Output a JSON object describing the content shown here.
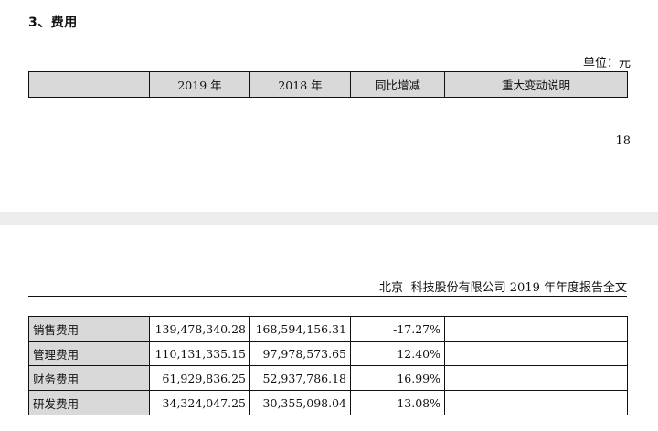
{
  "section": {
    "title": "3、费用"
  },
  "unit": {
    "label": "单位：元"
  },
  "table_header": {
    "col_blank": "",
    "col_2019": "2019 年",
    "col_2018": "2018 年",
    "col_change": "同比增减",
    "col_note": "重大变动说明"
  },
  "page_number": "18",
  "running_header": {
    "city": "北京",
    "report": "科技股份有限公司 2019 年年度报告全文"
  },
  "rows": [
    {
      "label": "销售费用",
      "y2019": "139,478,340.28",
      "y2018": "168,594,156.31",
      "change": "-17.27%",
      "note": ""
    },
    {
      "label": "管理费用",
      "y2019": "110,131,335.15",
      "y2018": "97,978,573.65",
      "change": "12.40%",
      "note": ""
    },
    {
      "label": "财务费用",
      "y2019": "61,929,836.25",
      "y2018": "52,937,786.18",
      "change": "16.99%",
      "note": ""
    },
    {
      "label": "研发费用",
      "y2019": "34,324,047.25",
      "y2018": "30,355,098.04",
      "change": "13.08%",
      "note": ""
    }
  ]
}
